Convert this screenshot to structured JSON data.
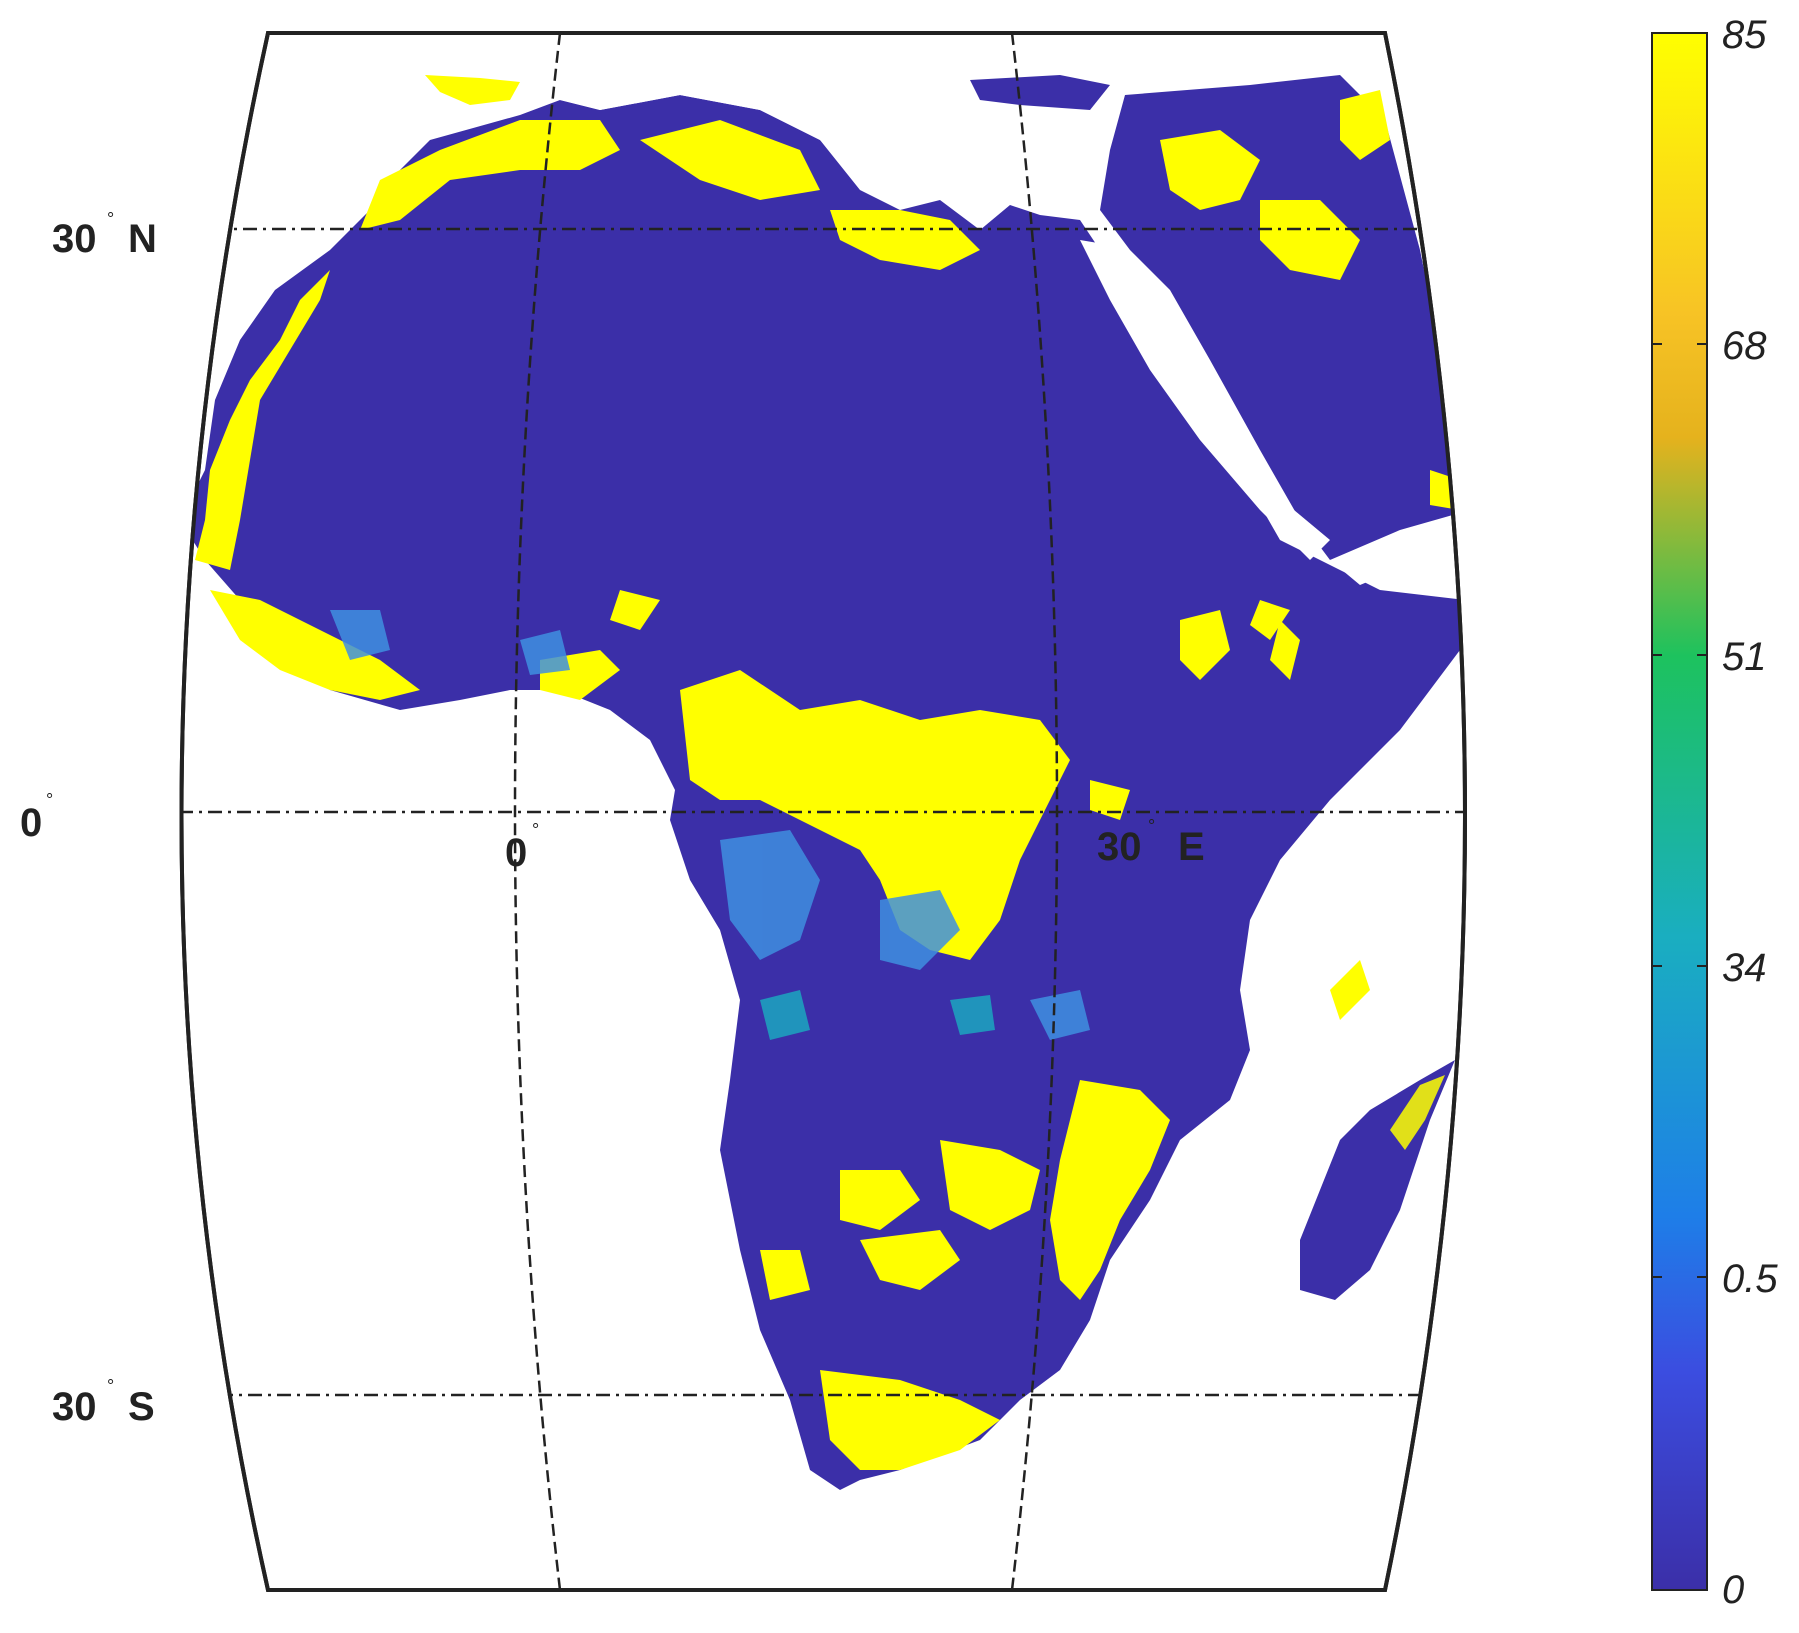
{
  "map": {
    "region": "Africa",
    "graticule": {
      "latitudes": [
        {
          "value": 30,
          "label_num": "30",
          "label_hemi": "N"
        },
        {
          "value": 0,
          "label_num": "0",
          "label_hemi": ""
        },
        {
          "value": -30,
          "label_num": "30",
          "label_hemi": "S"
        }
      ],
      "longitudes": [
        {
          "value": 0,
          "label_num": "0",
          "label_hemi": ""
        },
        {
          "value": 30,
          "label_num": "30",
          "label_hemi": "E"
        }
      ],
      "line_style": "dash-dot"
    },
    "colors": {
      "low": "#3b2fa8",
      "high": "#ffff00",
      "ocean": "#ffffff",
      "frame": "#222222"
    }
  },
  "colorbar": {
    "ticks": [
      "85",
      "68",
      "51",
      "34",
      "0.5",
      "0"
    ],
    "stops": [
      "#ffff00",
      "#f7b92a",
      "#1fbf63",
      "#1ba6c9",
      "#2f5ee6",
      "#3b2fa8"
    ]
  }
}
